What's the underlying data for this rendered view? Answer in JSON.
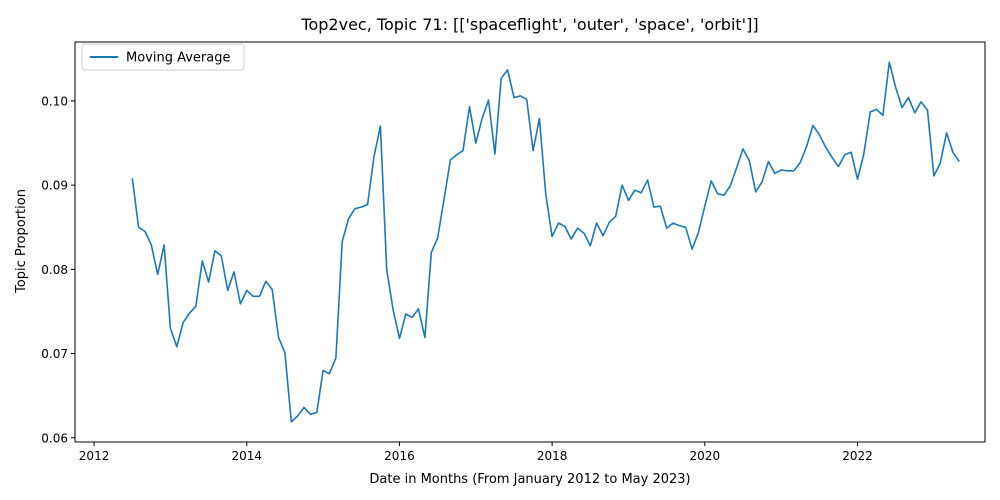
{
  "chart_data": {
    "type": "line",
    "title": "Top2vec, Topic 71: [['spaceflight', 'outer', 'space', 'orbit']]",
    "xlabel": "Date in Months (From January 2012 to May 2023)",
    "ylabel": "Topic Proportion",
    "xlim": [
      2011.75,
      2023.67
    ],
    "ylim": [
      0.0595,
      0.107
    ],
    "xticks": [
      2012,
      2014,
      2016,
      2018,
      2020,
      2022
    ],
    "xtick_labels": [
      "2012",
      "2014",
      "2016",
      "2018",
      "2020",
      "2022"
    ],
    "yticks": [
      0.06,
      0.07,
      0.08,
      0.09,
      0.1
    ],
    "ytick_labels": [
      "0.06",
      "0.07",
      "0.08",
      "0.09",
      "0.10"
    ],
    "grid": false,
    "legend_position": "top-left",
    "series": [
      {
        "name": "Moving Average",
        "color": "#1f77b4",
        "x": [
          2012.5,
          2012.583,
          2012.667,
          2012.75,
          2012.833,
          2012.917,
          2013.0,
          2013.083,
          2013.167,
          2013.25,
          2013.333,
          2013.417,
          2013.5,
          2013.583,
          2013.667,
          2013.75,
          2013.833,
          2013.917,
          2014.0,
          2014.083,
          2014.167,
          2014.25,
          2014.333,
          2014.417,
          2014.5,
          2014.583,
          2014.667,
          2014.75,
          2014.833,
          2014.917,
          2015.0,
          2015.083,
          2015.167,
          2015.25,
          2015.333,
          2015.417,
          2015.5,
          2015.583,
          2015.667,
          2015.75,
          2015.833,
          2015.917,
          2016.0,
          2016.083,
          2016.167,
          2016.25,
          2016.333,
          2016.417,
          2016.5,
          2016.583,
          2016.667,
          2016.75,
          2016.833,
          2016.917,
          2017.0,
          2017.083,
          2017.167,
          2017.25,
          2017.333,
          2017.417,
          2017.5,
          2017.583,
          2017.667,
          2017.75,
          2017.833,
          2017.917,
          2018.0,
          2018.083,
          2018.167,
          2018.25,
          2018.333,
          2018.417,
          2018.5,
          2018.583,
          2018.667,
          2018.75,
          2018.833,
          2018.917,
          2019.0,
          2019.083,
          2019.167,
          2019.25,
          2019.333,
          2019.417,
          2019.5,
          2019.583,
          2019.667,
          2019.75,
          2019.833,
          2019.917,
          2020.0,
          2020.083,
          2020.167,
          2020.25,
          2020.333,
          2020.417,
          2020.5,
          2020.583,
          2020.667,
          2020.75,
          2020.833,
          2020.917,
          2021.0,
          2021.083,
          2021.167,
          2021.25,
          2021.333,
          2021.417,
          2021.5,
          2021.583,
          2021.667,
          2021.75,
          2021.833,
          2021.917,
          2022.0,
          2022.083,
          2022.167,
          2022.25,
          2022.333,
          2022.417,
          2022.5,
          2022.583,
          2022.667,
          2022.75,
          2022.833,
          2022.917,
          2023.0,
          2023.083,
          2023.167,
          2023.25,
          2023.333
        ],
        "y": [
          0.0908,
          0.085,
          0.0845,
          0.0829,
          0.0794,
          0.0829,
          0.073,
          0.0708,
          0.0737,
          0.0748,
          0.0756,
          0.081,
          0.0785,
          0.0822,
          0.0816,
          0.0775,
          0.0797,
          0.0759,
          0.0775,
          0.0768,
          0.0768,
          0.0786,
          0.0776,
          0.0719,
          0.0701,
          0.0619,
          0.0626,
          0.0636,
          0.0628,
          0.063,
          0.068,
          0.0676,
          0.0695,
          0.0833,
          0.086,
          0.0872,
          0.0874,
          0.0877,
          0.0934,
          0.097,
          0.08,
          0.0752,
          0.0718,
          0.0747,
          0.0743,
          0.0753,
          0.0719,
          0.082,
          0.0837,
          0.0883,
          0.093,
          0.0936,
          0.0941,
          0.0993,
          0.095,
          0.0979,
          0.1001,
          0.0937,
          0.1027,
          0.1037,
          0.1004,
          0.1006,
          0.1002,
          0.0941,
          0.0979,
          0.0889,
          0.0839,
          0.0855,
          0.0851,
          0.0836,
          0.0849,
          0.0843,
          0.0828,
          0.0855,
          0.084,
          0.0856,
          0.0863,
          0.09,
          0.0882,
          0.0894,
          0.0891,
          0.0906,
          0.0874,
          0.0875,
          0.0849,
          0.0855,
          0.0852,
          0.085,
          0.0824,
          0.0844,
          0.0875,
          0.0905,
          0.089,
          0.0888,
          0.0899,
          0.0921,
          0.0943,
          0.0929,
          0.0892,
          0.0904,
          0.0928,
          0.0914,
          0.0918,
          0.0917,
          0.0917,
          0.0927,
          0.0946,
          0.0971,
          0.096,
          0.0945,
          0.0933,
          0.0922,
          0.0936,
          0.0939,
          0.0907,
          0.0937,
          0.0987,
          0.099,
          0.0983,
          0.1046,
          0.1016,
          0.0992,
          0.1004,
          0.0986,
          0.0999,
          0.0989,
          0.0911,
          0.0926,
          0.0962,
          0.0939,
          0.0928
        ]
      }
    ]
  }
}
